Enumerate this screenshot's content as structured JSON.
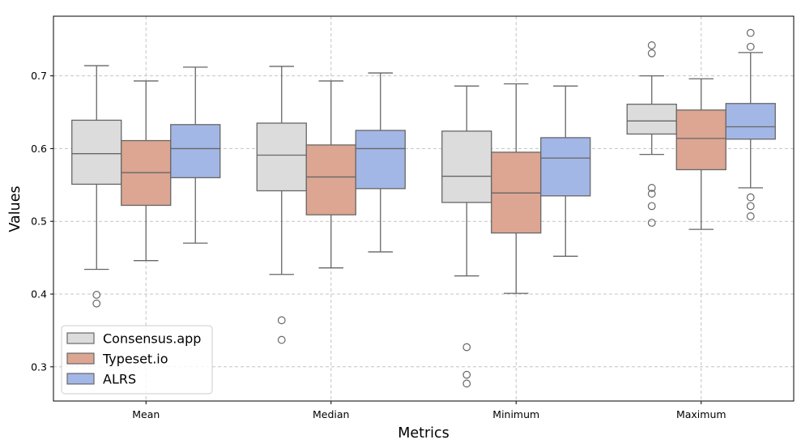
{
  "colors": {
    "Consensus.app": "#dcdcdc",
    "Typeset.io": "#dca693",
    "ALRS": "#a3b7e6",
    "box_edge": "#676767",
    "grid": "#c4c4c4"
  },
  "chart_data": {
    "type": "box",
    "xlabel": "Metrics",
    "ylabel": "Values",
    "categories": [
      "Mean",
      "Median",
      "Minimum",
      "Maximum"
    ],
    "ylim": [
      0.253,
      0.782
    ],
    "yticks": [
      0.3,
      0.4,
      0.5,
      0.6,
      0.7
    ],
    "grid": true,
    "legend_position": "lower-left",
    "series": [
      {
        "name": "Consensus.app",
        "boxes": [
          {
            "whislo": 0.434,
            "q1": 0.551,
            "med": 0.593,
            "q3": 0.639,
            "whishi": 0.714,
            "fliers": [
              0.399,
              0.387
            ]
          },
          {
            "whislo": 0.427,
            "q1": 0.542,
            "med": 0.591,
            "q3": 0.635,
            "whishi": 0.713,
            "fliers": [
              0.364,
              0.337
            ]
          },
          {
            "whislo": 0.425,
            "q1": 0.526,
            "med": 0.562,
            "q3": 0.624,
            "whishi": 0.686,
            "fliers": [
              0.327,
              0.289,
              0.277
            ]
          },
          {
            "whislo": 0.592,
            "q1": 0.62,
            "med": 0.638,
            "q3": 0.661,
            "whishi": 0.7,
            "fliers": [
              0.742,
              0.731,
              0.546,
              0.538,
              0.521,
              0.498
            ]
          }
        ]
      },
      {
        "name": "Typeset.io",
        "boxes": [
          {
            "whislo": 0.446,
            "q1": 0.522,
            "med": 0.567,
            "q3": 0.611,
            "whishi": 0.693,
            "fliers": []
          },
          {
            "whislo": 0.436,
            "q1": 0.509,
            "med": 0.561,
            "q3": 0.605,
            "whishi": 0.693,
            "fliers": []
          },
          {
            "whislo": 0.401,
            "q1": 0.484,
            "med": 0.539,
            "q3": 0.595,
            "whishi": 0.689,
            "fliers": []
          },
          {
            "whislo": 0.489,
            "q1": 0.571,
            "med": 0.614,
            "q3": 0.653,
            "whishi": 0.696,
            "fliers": []
          }
        ]
      },
      {
        "name": "ALRS",
        "boxes": [
          {
            "whislo": 0.47,
            "q1": 0.56,
            "med": 0.6,
            "q3": 0.633,
            "whishi": 0.712,
            "fliers": []
          },
          {
            "whislo": 0.458,
            "q1": 0.545,
            "med": 0.6,
            "q3": 0.625,
            "whishi": 0.704,
            "fliers": []
          },
          {
            "whislo": 0.452,
            "q1": 0.535,
            "med": 0.587,
            "q3": 0.615,
            "whishi": 0.686,
            "fliers": []
          },
          {
            "whislo": 0.546,
            "q1": 0.613,
            "med": 0.63,
            "q3": 0.662,
            "whishi": 0.732,
            "fliers": [
              0.759,
              0.74,
              0.533,
              0.521,
              0.507
            ]
          }
        ]
      }
    ]
  }
}
